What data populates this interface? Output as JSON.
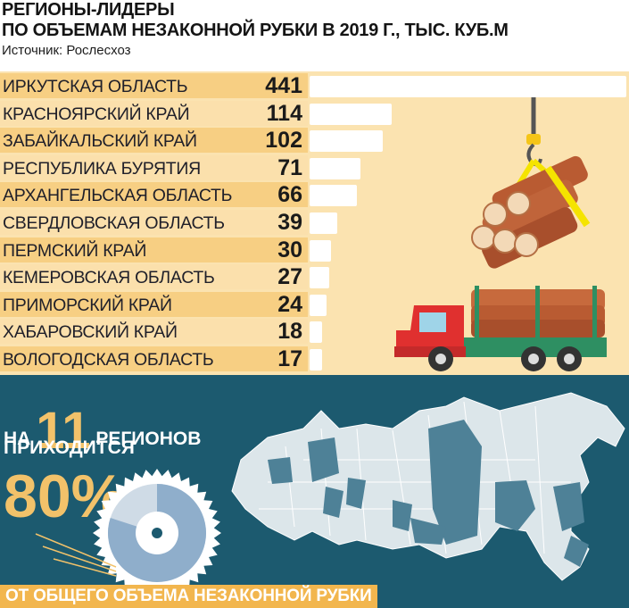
{
  "title_line1": "РЕГИОНЫ-ЛИДЕРЫ",
  "title_line2": "ПО ОБЪЕМАМ НЕЗАКОННОЙ РУБКИ В 2019 Г., ТЫС. КУБ.М",
  "source": "Источник: Рослесхоз",
  "chart_data": {
    "type": "bar",
    "orientation": "horizontal",
    "title": "РЕГИОНЫ-ЛИДЕРЫ ПО ОБЪЕМАМ НЕЗАКОННОЙ РУБКИ В 2019 Г., ТЫС. КУБ.М",
    "categories": [
      "ИРКУТСКАЯ ОБЛАСТЬ",
      "КРАСНОЯРСКИЙ КРАЙ",
      "ЗАБАЙКАЛЬСКИЙ КРАЙ",
      "РЕСПУБЛИКА БУРЯТИЯ",
      "АРХАНГЕЛЬСКАЯ ОБЛАСТЬ",
      "СВЕРДЛОВСКАЯ ОБЛАСТЬ",
      "ПЕРМСКИЙ КРАЙ",
      "КЕМЕРОВСКАЯ ОБЛАСТЬ",
      "ПРИМОРСКИЙ КРАЙ",
      "ХАБАРОВСКИЙ КРАЙ",
      "ВОЛОГОДСКАЯ ОБЛАСТЬ"
    ],
    "values": [
      441,
      114,
      102,
      71,
      66,
      39,
      30,
      27,
      24,
      18,
      17
    ],
    "value_labels": [
      "441",
      "114",
      "102",
      "71",
      "66",
      "39",
      "30",
      "27",
      "24",
      "18",
      "17"
    ],
    "xlim": [
      0,
      441
    ],
    "bar_color": "#ffffff",
    "grid": false
  },
  "summary": {
    "prefix": "НА",
    "count": "11",
    "regions": "РЕГИОНОВ",
    "falls_on": "ПРИХОДИТСЯ",
    "percent": "80",
    "percent_sign": "%",
    "footer": "ОТ ОБЩЕГО ОБЪЕМА НЕЗАКОННОЙ РУБКИ",
    "share": 0.8
  },
  "colors": {
    "accent": "#f2b64e",
    "panel": "#1c5a6f",
    "map_land": "#dce6ea",
    "map_highlight": "#4e8197",
    "row_dark": "#f7cf83",
    "row_light": "#fbe0ac",
    "truck_cab": "#e0302f",
    "truck_frame": "#2e8f62",
    "log": "#c0643a"
  }
}
